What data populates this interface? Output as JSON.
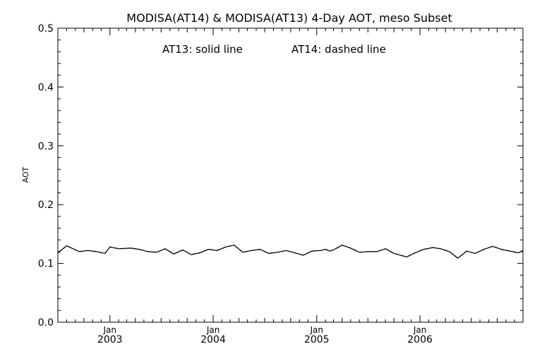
{
  "chart_data": {
    "type": "line",
    "title": "MODISA(AT14) & MODISA(AT13) 4-Day AOT, meso Subset",
    "annotation_left": "AT13: solid line",
    "annotation_right": "AT14: dashed line",
    "xlabel": "",
    "ylabel": "AOT",
    "ylim": [
      0,
      0.5
    ],
    "yticks": [
      "0.0",
      "0.1",
      "0.2",
      "0.3",
      "0.4",
      "0.5"
    ],
    "xlim": [
      "2002-07-01",
      "2006-12-31"
    ],
    "xticks": [
      {
        "month": "Jan",
        "year": "2003",
        "date": "2003-01-01"
      },
      {
        "month": "Jan",
        "year": "2004",
        "date": "2004-01-01"
      },
      {
        "month": "Jan",
        "year": "2005",
        "date": "2005-01-01"
      },
      {
        "month": "Jan",
        "year": "2006",
        "date": "2006-01-01"
      }
    ],
    "grid": false,
    "series": [
      {
        "name": "AT13",
        "style": "solid",
        "color": "#000000",
        "x": [
          "2002-07-01",
          "2002-08-01",
          "2002-09-15",
          "2002-10-15",
          "2002-11-15",
          "2002-12-15",
          "2003-01-01",
          "2003-02-01",
          "2003-03-15",
          "2003-04-15",
          "2003-05-15",
          "2003-06-15",
          "2003-07-15",
          "2003-08-15",
          "2003-09-15",
          "2003-10-15",
          "2003-11-15",
          "2003-12-15",
          "2004-01-15",
          "2004-02-15",
          "2004-03-15",
          "2004-04-15",
          "2004-05-15",
          "2004-06-15",
          "2004-07-15",
          "2004-08-15",
          "2004-09-15",
          "2004-10-15",
          "2004-11-15",
          "2004-12-15",
          "2005-01-15",
          "2005-02-01",
          "2005-02-15",
          "2005-03-01",
          "2005-04-01",
          "2005-05-01",
          "2005-06-01",
          "2005-07-01",
          "2005-08-01",
          "2005-09-01",
          "2005-10-01",
          "2005-11-15",
          "2005-12-15",
          "2006-01-15",
          "2006-02-15",
          "2006-03-15",
          "2006-04-15",
          "2006-05-15",
          "2006-06-15",
          "2006-07-15",
          "2006-08-15",
          "2006-09-15",
          "2006-10-15",
          "2006-11-15",
          "2006-12-15",
          "2006-12-31"
        ],
        "y": [
          0.118,
          0.13,
          0.12,
          0.122,
          0.12,
          0.117,
          0.128,
          0.125,
          0.126,
          0.124,
          0.12,
          0.119,
          0.125,
          0.116,
          0.123,
          0.115,
          0.118,
          0.124,
          0.122,
          0.128,
          0.131,
          0.119,
          0.122,
          0.124,
          0.117,
          0.119,
          0.122,
          0.118,
          0.114,
          0.121,
          0.122,
          0.124,
          0.121,
          0.123,
          0.131,
          0.126,
          0.119,
          0.12,
          0.12,
          0.125,
          0.117,
          0.111,
          0.118,
          0.124,
          0.127,
          0.125,
          0.12,
          0.109,
          0.121,
          0.117,
          0.124,
          0.129,
          0.124,
          0.121,
          0.118,
          0.122
        ]
      },
      {
        "name": "AT14",
        "style": "dashed",
        "color": "#000000",
        "x": [
          "2002-07-01",
          "2002-08-01",
          "2002-09-15",
          "2002-10-15",
          "2002-11-15",
          "2002-12-15",
          "2003-01-01",
          "2003-02-01",
          "2003-03-15",
          "2003-04-15",
          "2003-05-15",
          "2003-06-15",
          "2003-07-15",
          "2003-08-15",
          "2003-09-15",
          "2003-10-15",
          "2003-11-15",
          "2003-12-15",
          "2004-01-15",
          "2004-02-15",
          "2004-03-15",
          "2004-04-15",
          "2004-05-15",
          "2004-06-15",
          "2004-07-15",
          "2004-08-15",
          "2004-09-15",
          "2004-10-15",
          "2004-11-15",
          "2004-12-15",
          "2005-01-15",
          "2005-02-01",
          "2005-02-15",
          "2005-03-01",
          "2005-04-01",
          "2005-05-01",
          "2005-06-01",
          "2005-07-01",
          "2005-08-01",
          "2005-09-01",
          "2005-10-01",
          "2005-11-15",
          "2005-12-15",
          "2006-01-15",
          "2006-02-15",
          "2006-03-15",
          "2006-04-15",
          "2006-05-15",
          "2006-06-15",
          "2006-07-15",
          "2006-08-15",
          "2006-09-15",
          "2006-10-15",
          "2006-11-15",
          "2006-12-15",
          "2006-12-31"
        ],
        "y": [
          0.118,
          0.13,
          0.12,
          0.122,
          0.12,
          0.117,
          0.128,
          0.125,
          0.126,
          0.124,
          0.12,
          0.119,
          0.125,
          0.116,
          0.123,
          0.115,
          0.118,
          0.124,
          0.122,
          0.128,
          0.131,
          0.119,
          0.122,
          0.124,
          0.117,
          0.119,
          0.122,
          0.118,
          0.114,
          0.121,
          0.122,
          0.124,
          0.121,
          0.123,
          0.131,
          0.126,
          0.119,
          0.12,
          0.12,
          0.125,
          0.117,
          0.111,
          0.118,
          0.124,
          0.127,
          0.125,
          0.12,
          0.109,
          0.121,
          0.117,
          0.124,
          0.129,
          0.124,
          0.121,
          0.118,
          0.122
        ]
      }
    ]
  }
}
